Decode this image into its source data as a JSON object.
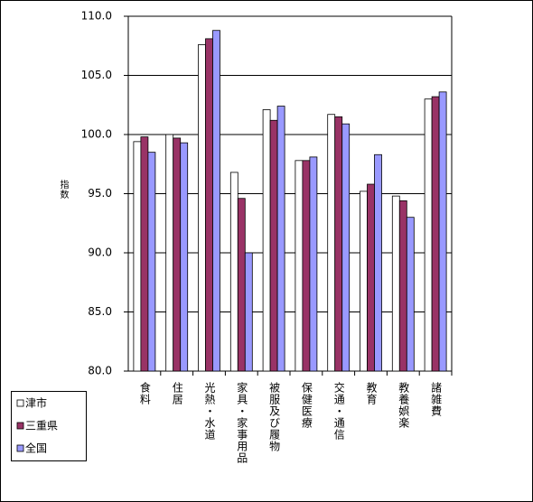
{
  "chart_data": {
    "type": "bar",
    "y_label": "指数",
    "categories": [
      "食料",
      "住居",
      "光熱・水道",
      "家具・家事用品",
      "被服及び履物",
      "保健医療",
      "交通・通信",
      "教育",
      "教養娯楽",
      "諸雑費"
    ],
    "series": [
      {
        "name": "津市",
        "color": "#ffffff",
        "values": [
          99.4,
          100.0,
          107.6,
          96.8,
          102.1,
          97.8,
          101.7,
          95.2,
          94.8,
          103.0
        ]
      },
      {
        "name": "三重県",
        "color": "#993366",
        "values": [
          99.8,
          99.7,
          108.1,
          94.6,
          101.2,
          97.8,
          101.5,
          95.8,
          94.4,
          103.2
        ]
      },
      {
        "name": "全国",
        "color": "#9999ff",
        "values": [
          98.5,
          99.3,
          108.8,
          90.0,
          102.4,
          98.1,
          100.9,
          98.3,
          93.0,
          103.6
        ]
      }
    ],
    "ylim": [
      80,
      110
    ],
    "yticks": [
      {
        "value": 80,
        "label": "80.0"
      },
      {
        "value": 85,
        "label": "85.0"
      },
      {
        "value": 90,
        "label": "90.0"
      },
      {
        "value": 95,
        "label": "95.0"
      },
      {
        "value": 100,
        "label": "100.0"
      },
      {
        "value": 105,
        "label": "105.0"
      },
      {
        "value": 110,
        "label": "110.0"
      }
    ],
    "grid": true
  }
}
